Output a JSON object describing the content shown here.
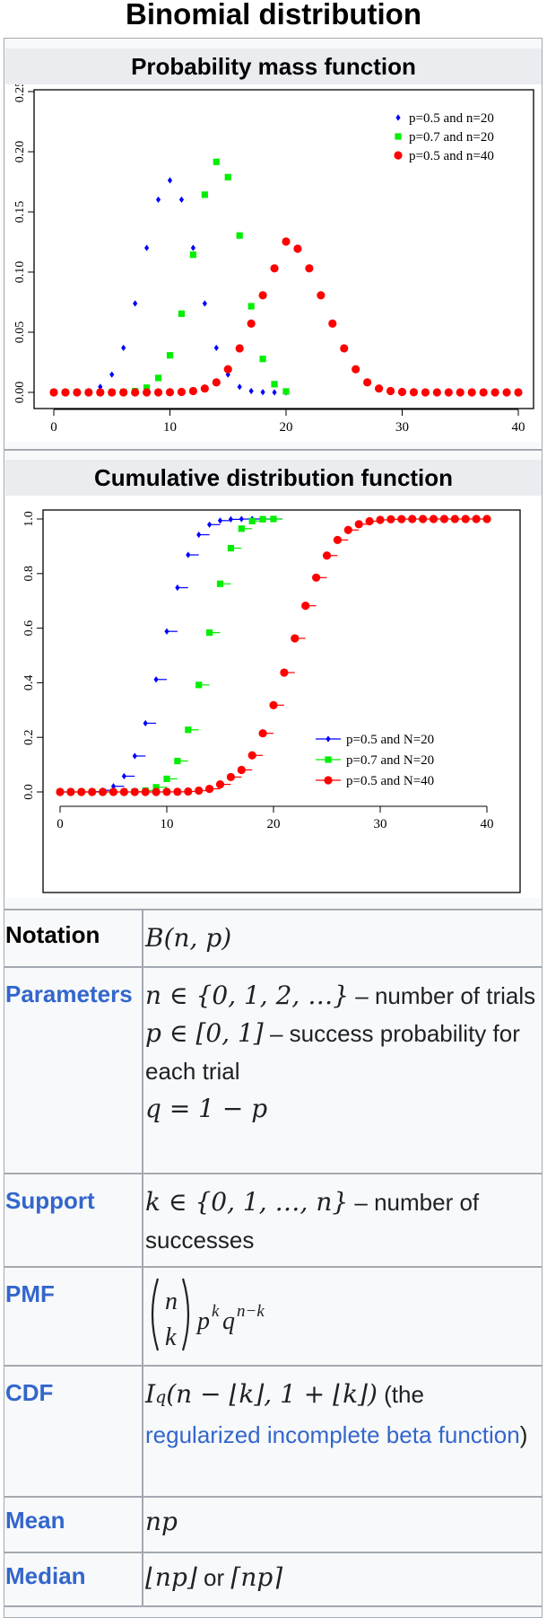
{
  "page": {
    "title": "Binomial distribution"
  },
  "pmf_section": {
    "heading": "Probability mass function"
  },
  "cdf_section": {
    "heading": "Cumulative distribution function"
  },
  "chart_data": [
    {
      "type": "scatter",
      "title": "",
      "xlim": [
        0,
        40
      ],
      "ylim": [
        0,
        0.25
      ],
      "xticks": [
        "0",
        "10",
        "20",
        "30",
        "40"
      ],
      "yticks": [
        "0.00",
        "0.05",
        "0.10",
        "0.15",
        "0.20",
        "0.25"
      ],
      "legend_position": "top-right",
      "series": [
        {
          "name": "p=0.5 and n=20",
          "color": "#0000ff",
          "marker": "diamond",
          "x": [
            0,
            1,
            2,
            3,
            4,
            5,
            6,
            7,
            8,
            9,
            10,
            11,
            12,
            13,
            14,
            15,
            16,
            17,
            18,
            19,
            20
          ],
          "y": [
            0,
            0,
            0.0002,
            0.0011,
            0.0046,
            0.0148,
            0.037,
            0.0739,
            0.1201,
            0.1602,
            0.1762,
            0.1602,
            0.1201,
            0.0739,
            0.037,
            0.0148,
            0.0046,
            0.0011,
            0.0002,
            0,
            0
          ]
        },
        {
          "name": "p=0.7 and n=20",
          "color": "#00ee00",
          "marker": "square",
          "x": [
            0,
            1,
            2,
            3,
            4,
            5,
            6,
            7,
            8,
            9,
            10,
            11,
            12,
            13,
            14,
            15,
            16,
            17,
            18,
            19,
            20
          ],
          "y": [
            0,
            0,
            0,
            0,
            0,
            0,
            0.0002,
            0.001,
            0.0039,
            0.012,
            0.0308,
            0.0654,
            0.1144,
            0.1643,
            0.1916,
            0.1789,
            0.1304,
            0.0716,
            0.0278,
            0.0068,
            0.0008
          ]
        },
        {
          "name": "p=0.5 and n=40",
          "color": "#ff0000",
          "marker": "circle",
          "x": [
            0,
            1,
            2,
            3,
            4,
            5,
            6,
            7,
            8,
            9,
            10,
            11,
            12,
            13,
            14,
            15,
            16,
            17,
            18,
            19,
            20,
            21,
            22,
            23,
            24,
            25,
            26,
            27,
            28,
            29,
            30,
            31,
            32,
            33,
            34,
            35,
            36,
            37,
            38,
            39,
            40
          ],
          "y": [
            0,
            0,
            0,
            0,
            0,
            0,
            0,
            0,
            0,
            0,
            0.0001,
            0.0004,
            0.0011,
            0.0032,
            0.0083,
            0.0192,
            0.0366,
            0.0572,
            0.0807,
            0.1031,
            0.1254,
            0.1194,
            0.1031,
            0.0807,
            0.0572,
            0.0366,
            0.0192,
            0.0083,
            0.0032,
            0.0011,
            0.0004,
            0.0001,
            0,
            0,
            0,
            0,
            0,
            0,
            0,
            0,
            0
          ]
        }
      ]
    },
    {
      "type": "scatter",
      "title": "",
      "xlim": [
        0,
        40
      ],
      "ylim": [
        0,
        1
      ],
      "xticks": [
        "0",
        "10",
        "20",
        "30",
        "40"
      ],
      "yticks": [
        "0.0",
        "0.2",
        "0.4",
        "0.6",
        "0.8",
        "1.0"
      ],
      "legend_position": "bottom-right",
      "series": [
        {
          "name": "p=0.5 and N=20",
          "color": "#0000ff",
          "marker": "diamond",
          "x": [
            0,
            1,
            2,
            3,
            4,
            5,
            6,
            7,
            8,
            9,
            10,
            11,
            12,
            13,
            14,
            15,
            16,
            17,
            18,
            19,
            20
          ],
          "y": [
            0,
            0,
            0,
            0.0013,
            0.0059,
            0.0207,
            0.0577,
            0.1316,
            0.2517,
            0.4119,
            0.5881,
            0.7483,
            0.8684,
            0.9423,
            0.9793,
            0.9941,
            0.9987,
            0.9998,
            1,
            1,
            1
          ]
        },
        {
          "name": "p=0.7 and N=20",
          "color": "#00ee00",
          "marker": "square",
          "x": [
            0,
            1,
            2,
            3,
            4,
            5,
            6,
            7,
            8,
            9,
            10,
            11,
            12,
            13,
            14,
            15,
            16,
            17,
            18,
            19,
            20
          ],
          "y": [
            0,
            0,
            0,
            0,
            0,
            0,
            0,
            0.0013,
            0.0051,
            0.0171,
            0.048,
            0.1133,
            0.2277,
            0.392,
            0.5836,
            0.7625,
            0.8929,
            0.9645,
            0.9924,
            0.9992,
            1
          ]
        },
        {
          "name": "p=0.5 and N=40",
          "color": "#ff0000",
          "marker": "circle",
          "x": [
            0,
            1,
            2,
            3,
            4,
            5,
            6,
            7,
            8,
            9,
            10,
            11,
            12,
            13,
            14,
            15,
            16,
            17,
            18,
            19,
            20,
            21,
            22,
            23,
            24,
            25,
            26,
            27,
            28,
            29,
            30,
            31,
            32,
            33,
            34,
            35,
            36,
            37,
            38,
            39,
            40
          ],
          "y": [
            0,
            0,
            0,
            0,
            0,
            0,
            0,
            0,
            0,
            0.0001,
            0.0003,
            0.0006,
            0.0017,
            0.0049,
            0.0113,
            0.0277,
            0.0545,
            0.0807,
            0.134,
            0.2148,
            0.3179,
            0.4373,
            0.5627,
            0.6821,
            0.7852,
            0.866,
            0.9232,
            0.9596,
            0.9808,
            0.9917,
            0.9968,
            0.9989,
            0.9997,
            0.9999,
            1,
            1,
            1,
            1,
            1,
            1,
            1
          ]
        }
      ]
    }
  ],
  "rows": {
    "notation": {
      "label": "Notation",
      "math": "B(n, p)"
    },
    "parameters": {
      "label": "Parameters",
      "line1_math": "n ∈ {0, 1, 2, …}",
      "line1_text": " – number of trials",
      "line2_math": "p ∈ [0, 1]",
      "line2_text": " – success probability for each trial",
      "line3_math": "q = 1 − p"
    },
    "support": {
      "label": "Support",
      "math": "k ∈ {0, 1, …, n}",
      "text": " – number of successes"
    },
    "pmf": {
      "label": "PMF",
      "binom_top": "n",
      "binom_bottom": "k",
      "math_tail": "p"
    },
    "cdf": {
      "label": "CDF",
      "math": "I",
      "text_open": " (the ",
      "link": "regularized incomplete beta function",
      "text_close": ")"
    },
    "mean": {
      "label": "Mean",
      "math": "np"
    },
    "median": {
      "label": "Median",
      "math1": "⌊np⌋",
      "word": " or ",
      "math2": "⌈np⌉"
    }
  }
}
